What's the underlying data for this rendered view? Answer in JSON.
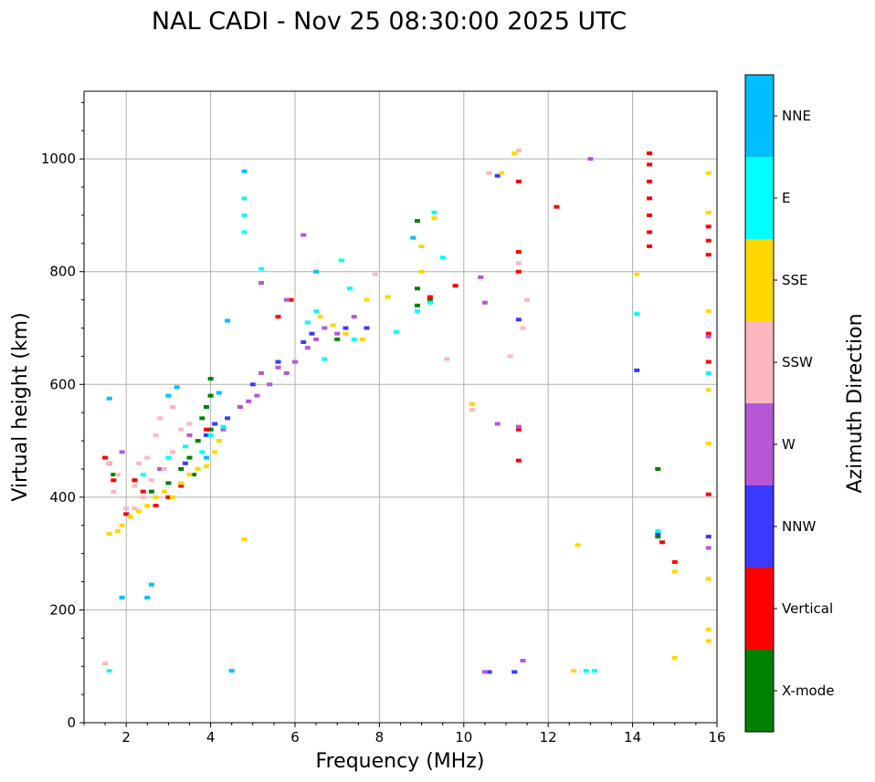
{
  "chart_data": {
    "type": "scatter",
    "title": "NAL CADI - Nov 25 08:30:00 2025 UTC",
    "xlabel": "Frequency (MHz)",
    "ylabel": "Virtual height (km)",
    "xlim": [
      1,
      16
    ],
    "ylim": [
      0,
      1120
    ],
    "x_ticks": [
      2,
      4,
      6,
      8,
      10,
      12,
      14,
      16
    ],
    "y_ticks": [
      0,
      200,
      400,
      600,
      800,
      1000
    ],
    "grid": true,
    "colorbar": {
      "label": "Azimuth Direction",
      "categories": [
        {
          "name": "X-mode",
          "color": "#008000"
        },
        {
          "name": "Vertical",
          "color": "#ff0000"
        },
        {
          "name": "NNW",
          "color": "#3a3aff"
        },
        {
          "name": "W",
          "color": "#b657d6"
        },
        {
          "name": "SSW",
          "color": "#ffb6c1"
        },
        {
          "name": "SSE",
          "color": "#ffd700"
        },
        {
          "name": "E",
          "color": "#00ffff"
        },
        {
          "name": "NNE",
          "color": "#00bfff"
        }
      ]
    },
    "series": [
      {
        "name": "X-mode",
        "points": [
          [
            1.6,
            460
          ],
          [
            1.7,
            440
          ],
          [
            2.2,
            430
          ],
          [
            2.6,
            410
          ],
          [
            3.0,
            425
          ],
          [
            3.3,
            450
          ],
          [
            3.5,
            470
          ],
          [
            3.7,
            500
          ],
          [
            3.8,
            540
          ],
          [
            3.9,
            560
          ],
          [
            4.0,
            580
          ],
          [
            4.0,
            610
          ],
          [
            4.0,
            520
          ],
          [
            3.6,
            440
          ],
          [
            5.6,
            640
          ],
          [
            7.0,
            680
          ],
          [
            8.9,
            890
          ],
          [
            8.9,
            770
          ],
          [
            8.9,
            740
          ],
          [
            9.2,
            750
          ],
          [
            14.6,
            450
          ],
          [
            14.6,
            330
          ]
        ]
      },
      {
        "name": "Vertical",
        "points": [
          [
            1.5,
            470
          ],
          [
            1.6,
            460
          ],
          [
            1.7,
            430
          ],
          [
            2.0,
            370
          ],
          [
            2.2,
            430
          ],
          [
            2.4,
            410
          ],
          [
            2.7,
            385
          ],
          [
            3.0,
            400
          ],
          [
            3.3,
            420
          ],
          [
            3.9,
            520
          ],
          [
            5.6,
            720
          ],
          [
            5.9,
            750
          ],
          [
            9.2,
            755
          ],
          [
            9.8,
            775
          ],
          [
            11.3,
            960
          ],
          [
            11.3,
            835
          ],
          [
            11.3,
            800
          ],
          [
            11.3,
            520
          ],
          [
            11.3,
            465
          ],
          [
            12.2,
            915
          ],
          [
            14.4,
            1010
          ],
          [
            14.4,
            990
          ],
          [
            14.4,
            960
          ],
          [
            14.4,
            930
          ],
          [
            14.4,
            900
          ],
          [
            14.4,
            870
          ],
          [
            14.4,
            845
          ],
          [
            14.7,
            320
          ],
          [
            15.0,
            285
          ],
          [
            15.8,
            880
          ],
          [
            15.8,
            855
          ],
          [
            15.8,
            830
          ],
          [
            15.8,
            640
          ],
          [
            15.8,
            405
          ],
          [
            15.8,
            690
          ]
        ]
      },
      {
        "name": "NNW",
        "points": [
          [
            3.4,
            460
          ],
          [
            3.9,
            510
          ],
          [
            4.1,
            530
          ],
          [
            4.4,
            540
          ],
          [
            5.0,
            600
          ],
          [
            5.6,
            640
          ],
          [
            6.2,
            675
          ],
          [
            6.4,
            690
          ],
          [
            7.2,
            700
          ],
          [
            7.7,
            700
          ],
          [
            10.6,
            90
          ],
          [
            10.8,
            970
          ],
          [
            11.2,
            90
          ],
          [
            11.3,
            715
          ],
          [
            14.1,
            625
          ],
          [
            15.8,
            330
          ],
          [
            14.6,
            335
          ]
        ]
      },
      {
        "name": "W",
        "points": [
          [
            1.9,
            480
          ],
          [
            2.8,
            450
          ],
          [
            3.5,
            510
          ],
          [
            4.3,
            520
          ],
          [
            4.7,
            560
          ],
          [
            4.9,
            570
          ],
          [
            5.1,
            580
          ],
          [
            5.2,
            620
          ],
          [
            5.4,
            600
          ],
          [
            5.6,
            630
          ],
          [
            5.8,
            620
          ],
          [
            6.0,
            640
          ],
          [
            6.3,
            665
          ],
          [
            6.5,
            680
          ],
          [
            6.7,
            700
          ],
          [
            7.0,
            690
          ],
          [
            7.4,
            720
          ],
          [
            5.2,
            780
          ],
          [
            6.2,
            865
          ],
          [
            5.8,
            750
          ],
          [
            10.4,
            790
          ],
          [
            10.5,
            90
          ],
          [
            10.5,
            745
          ],
          [
            10.8,
            530
          ],
          [
            11.3,
            525
          ],
          [
            11.4,
            110
          ],
          [
            13.0,
            1000
          ],
          [
            15.8,
            310
          ],
          [
            15.8,
            685
          ]
        ]
      },
      {
        "name": "SSW",
        "points": [
          [
            1.6,
            460
          ],
          [
            1.7,
            410
          ],
          [
            1.8,
            440
          ],
          [
            2.0,
            380
          ],
          [
            2.2,
            420
          ],
          [
            2.3,
            460
          ],
          [
            2.5,
            470
          ],
          [
            2.6,
            430
          ],
          [
            2.7,
            510
          ],
          [
            2.8,
            540
          ],
          [
            2.9,
            450
          ],
          [
            3.1,
            480
          ],
          [
            3.3,
            520
          ],
          [
            3.5,
            530
          ],
          [
            2.4,
            400
          ],
          [
            2.2,
            380
          ],
          [
            3.1,
            560
          ],
          [
            7.9,
            795
          ],
          [
            9.6,
            645
          ],
          [
            10.2,
            555
          ],
          [
            10.6,
            975
          ],
          [
            11.1,
            650
          ],
          [
            11.4,
            700
          ],
          [
            11.5,
            750
          ],
          [
            11.3,
            815
          ],
          [
            11.3,
            1015
          ],
          [
            1.5,
            105
          ]
        ]
      },
      {
        "name": "SSE",
        "points": [
          [
            1.6,
            335
          ],
          [
            1.8,
            340
          ],
          [
            1.9,
            350
          ],
          [
            2.1,
            365
          ],
          [
            2.3,
            375
          ],
          [
            2.5,
            385
          ],
          [
            2.7,
            400
          ],
          [
            2.9,
            410
          ],
          [
            3.1,
            400
          ],
          [
            3.3,
            425
          ],
          [
            3.5,
            440
          ],
          [
            3.7,
            450
          ],
          [
            3.9,
            455
          ],
          [
            4.1,
            480
          ],
          [
            4.2,
            500
          ],
          [
            4.8,
            325
          ],
          [
            6.6,
            720
          ],
          [
            6.9,
            705
          ],
          [
            7.2,
            690
          ],
          [
            7.6,
            680
          ],
          [
            7.7,
            750
          ],
          [
            8.2,
            755
          ],
          [
            9.0,
            800
          ],
          [
            9.0,
            845
          ],
          [
            9.3,
            895
          ],
          [
            10.2,
            565
          ],
          [
            10.9,
            975
          ],
          [
            11.2,
            1010
          ],
          [
            12.7,
            315
          ],
          [
            12.6,
            92
          ],
          [
            14.1,
            795
          ],
          [
            15.0,
            268
          ],
          [
            15.0,
            115
          ],
          [
            15.8,
            975
          ],
          [
            15.8,
            905
          ],
          [
            15.8,
            730
          ],
          [
            15.8,
            590
          ],
          [
            15.8,
            495
          ],
          [
            15.8,
            255
          ],
          [
            15.8,
            165
          ],
          [
            15.8,
            145
          ]
        ]
      },
      {
        "name": "E",
        "points": [
          [
            1.6,
            92
          ],
          [
            2.4,
            440
          ],
          [
            3.0,
            470
          ],
          [
            3.4,
            490
          ],
          [
            3.8,
            480
          ],
          [
            4.0,
            510
          ],
          [
            4.3,
            525
          ],
          [
            4.8,
            900
          ],
          [
            4.8,
            870
          ],
          [
            4.8,
            930
          ],
          [
            5.2,
            805
          ],
          [
            6.3,
            710
          ],
          [
            6.5,
            730
          ],
          [
            6.7,
            645
          ],
          [
            7.1,
            820
          ],
          [
            7.3,
            770
          ],
          [
            7.4,
            680
          ],
          [
            8.4,
            693
          ],
          [
            8.9,
            730
          ],
          [
            9.2,
            745
          ],
          [
            9.3,
            905
          ],
          [
            9.5,
            825
          ],
          [
            12.9,
            92
          ],
          [
            13.1,
            92
          ],
          [
            14.1,
            725
          ],
          [
            14.6,
            340
          ],
          [
            15.8,
            620
          ]
        ]
      },
      {
        "name": "NNE",
        "points": [
          [
            1.6,
            575
          ],
          [
            1.9,
            222
          ],
          [
            2.5,
            222
          ],
          [
            2.6,
            245
          ],
          [
            3.0,
            580
          ],
          [
            3.2,
            595
          ],
          [
            3.9,
            470
          ],
          [
            4.2,
            585
          ],
          [
            4.4,
            713
          ],
          [
            4.5,
            92
          ],
          [
            4.8,
            978
          ],
          [
            6.5,
            800
          ],
          [
            8.8,
            860
          ]
        ]
      }
    ]
  }
}
